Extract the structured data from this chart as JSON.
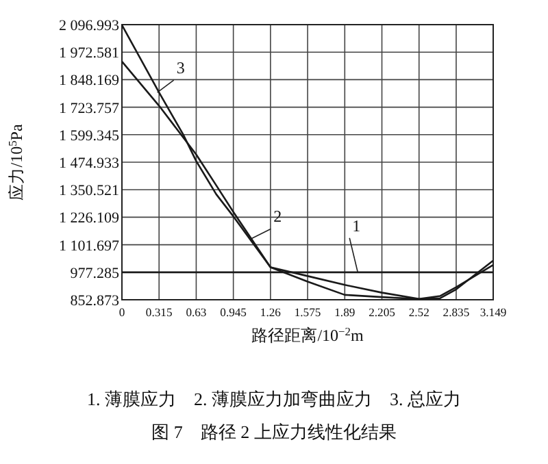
{
  "chart_data": {
    "type": "line",
    "title": "图 7　路径 2 上应力线性化结果",
    "xlabel": "路径距离/10$^{−2}$m",
    "ylabel": "应力/10$^{5}$Pa",
    "xlim": [
      0,
      3.149
    ],
    "ylim": [
      852.873,
      2096.993
    ],
    "xticks": [
      0,
      0.315,
      0.63,
      0.945,
      1.26,
      1.575,
      1.89,
      2.205,
      2.52,
      2.835,
      3.149
    ],
    "yticks": [
      {
        "value": 852.873,
        "label": "852.873"
      },
      {
        "value": 977.285,
        "label": "977.285"
      },
      {
        "value": 1101.697,
        "label": "1 101.697"
      },
      {
        "value": 1226.109,
        "label": "1 226.109"
      },
      {
        "value": 1350.521,
        "label": "1 350.521"
      },
      {
        "value": 1474.933,
        "label": "1 474.933"
      },
      {
        "value": 1599.345,
        "label": "1 599.345"
      },
      {
        "value": 1723.757,
        "label": "1 723.757"
      },
      {
        "value": 1848.169,
        "label": "1 848.169"
      },
      {
        "value": 1972.581,
        "label": "1 972.581"
      },
      {
        "value": 2096.993,
        "label": "2 096.993"
      }
    ],
    "grid": true,
    "line_style": "solid",
    "series": [
      {
        "color": "#1a1a1a",
        "x": [
          0,
          3.149
        ],
        "values": [
          977,
          977
        ]
      },
      {
        "color": "#1a1a1a",
        "x": [
          0,
          0.315,
          0.63,
          0.8,
          0.945,
          1.26,
          1.575,
          1.89,
          2.205,
          2.52,
          2.7,
          2.835,
          3.149
        ],
        "values": [
          1930,
          1730,
          1510,
          1370,
          1250,
          1000,
          960,
          920,
          885,
          857,
          870,
          910,
          1010
        ]
      },
      {
        "color": "#1a1a1a",
        "x": [
          0,
          0.315,
          0.52,
          0.63,
          0.8,
          0.945,
          1.26,
          1.575,
          1.89,
          2.205,
          2.52,
          2.7,
          2.835,
          3.149
        ],
        "values": [
          2095,
          1790,
          1600,
          1480,
          1330,
          1230,
          1000,
          935,
          875,
          865,
          856,
          860,
          900,
          1030
        ]
      }
    ],
    "annotations": [
      {
        "text": "1",
        "x": 2.0,
        "y": 977.285
      },
      {
        "text": "2",
        "x": 1.1,
        "y": 1130
      },
      {
        "text": "3",
        "x": 0.3,
        "y": 1790
      },
      "1. 薄膜应力　2. 薄膜应力加弯曲应力　3. 总应力"
    ]
  }
}
